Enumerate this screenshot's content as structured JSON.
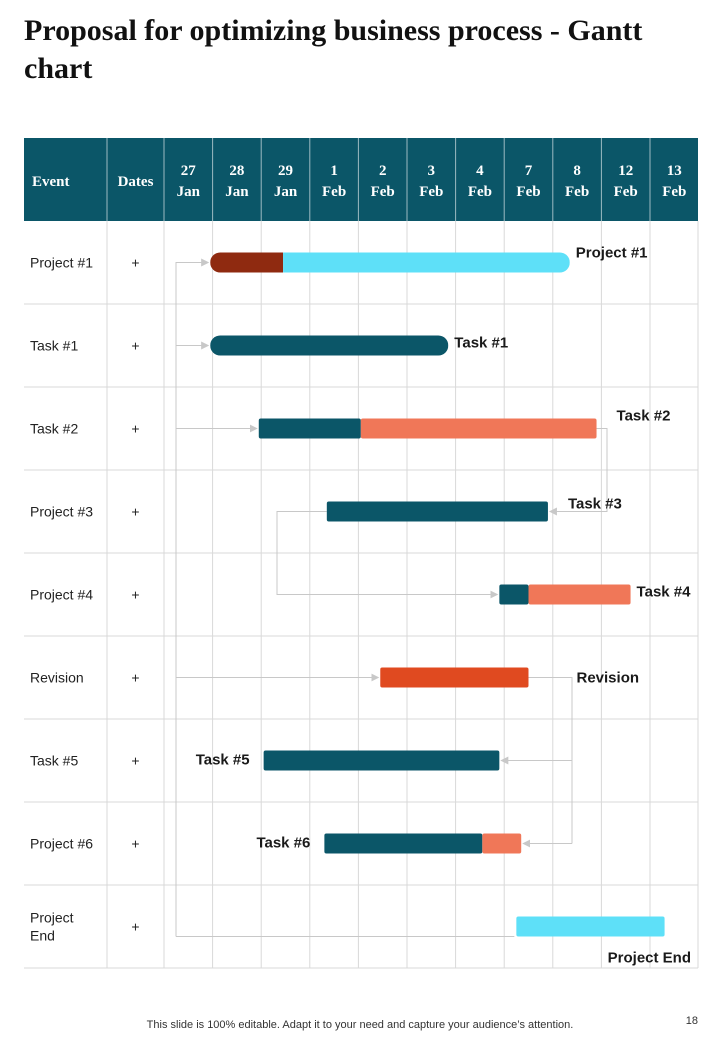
{
  "page": {
    "title": "Proposal for optimizing business process - Gantt chart",
    "footer": "This slide is 100% editable. Adapt it to your need and capture your audience’s attention.",
    "page_number": "18"
  },
  "colors": {
    "header_bg": "#0b5668",
    "dark_teal": "#0b5668",
    "light_cyan": "#5ee0f8",
    "coral": "#f07758",
    "dark_red": "#8f2a10",
    "orange_red": "#e04a20",
    "grid": "#d9d9d9",
    "connector": "#c8c8c8"
  },
  "chart_data": {
    "type": "gantt",
    "title": "Proposal for optimizing business process - Gantt chart",
    "header_labels": {
      "event": "Event",
      "dates": "Dates"
    },
    "date_columns": [
      {
        "day": "27",
        "month": "Jan"
      },
      {
        "day": "28",
        "month": "Jan"
      },
      {
        "day": "29",
        "month": "Jan"
      },
      {
        "day": "1",
        "month": "Feb"
      },
      {
        "day": "2",
        "month": "Feb"
      },
      {
        "day": "3",
        "month": "Feb"
      },
      {
        "day": "4",
        "month": "Feb"
      },
      {
        "day": "7",
        "month": "Feb"
      },
      {
        "day": "8",
        "month": "Feb"
      },
      {
        "day": "12",
        "month": "Feb"
      },
      {
        "day": "13",
        "month": "Feb"
      }
    ],
    "rows": [
      {
        "event": "Project #1",
        "dates": "+",
        "label": "Project #1",
        "label_side": "right",
        "segments": [
          {
            "start": 0.95,
            "end": 2.45,
            "color": "dark_red"
          },
          {
            "start": 2.45,
            "end": 8.35,
            "color": "light_cyan"
          }
        ],
        "rounded": true
      },
      {
        "event": "Task #1",
        "dates": "+",
        "label": "Task #1",
        "label_side": "right",
        "segments": [
          {
            "start": 0.95,
            "end": 5.85,
            "color": "dark_teal"
          }
        ],
        "rounded": true
      },
      {
        "event": "Task #2",
        "dates": "+",
        "label": "Task #2",
        "label_side": "right-far",
        "segments": [
          {
            "start": 1.95,
            "end": 4.05,
            "color": "dark_teal"
          },
          {
            "start": 4.05,
            "end": 8.9,
            "color": "coral"
          }
        ],
        "rounded": false
      },
      {
        "event": "Project #3",
        "dates": "+",
        "label": "Task #3",
        "label_side": "right-far",
        "segments": [
          {
            "start": 3.35,
            "end": 7.9,
            "color": "dark_teal"
          }
        ],
        "rounded": false
      },
      {
        "event": "Project #4",
        "dates": "+",
        "label": "Task #4",
        "label_side": "right",
        "segments": [
          {
            "start": 6.9,
            "end": 7.5,
            "color": "dark_teal"
          },
          {
            "start": 7.5,
            "end": 9.6,
            "color": "coral"
          }
        ],
        "rounded": false
      },
      {
        "event": "Revision",
        "dates": "+",
        "label": "Revision",
        "label_side": "right-far",
        "segments": [
          {
            "start": 4.45,
            "end": 7.5,
            "color": "orange_red"
          }
        ],
        "rounded": false
      },
      {
        "event": "Task #5",
        "dates": "+",
        "label": "Task #5",
        "label_side": "left",
        "segments": [
          {
            "start": 2.05,
            "end": 6.9,
            "color": "dark_teal"
          }
        ],
        "rounded": false
      },
      {
        "event": "Project #6",
        "dates": "+",
        "label": "Task #6",
        "label_side": "left",
        "segments": [
          {
            "start": 3.3,
            "end": 6.55,
            "color": "dark_teal"
          },
          {
            "start": 6.55,
            "end": 7.35,
            "color": "coral"
          }
        ],
        "rounded": false
      },
      {
        "event": "Project\nEnd",
        "dates": "+",
        "label": "Project End",
        "label_side": "below",
        "segments": [
          {
            "start": 7.25,
            "end": 10.3,
            "color": "light_cyan"
          }
        ],
        "rounded": false
      }
    ],
    "dependencies": [
      {
        "from": "Project #1",
        "to": "Task #1"
      },
      {
        "from": "Project #1",
        "to": "Task #2"
      },
      {
        "from": "Project #1",
        "to": "Revision"
      },
      {
        "from": "Project #1",
        "to": "Project End"
      },
      {
        "from": "Task #2",
        "to": "Task #3"
      },
      {
        "from": "Task #3",
        "to": "Task #4"
      },
      {
        "from": "Revision",
        "to": "Task #5"
      },
      {
        "from": "Revision",
        "to": "Task #6"
      }
    ]
  }
}
